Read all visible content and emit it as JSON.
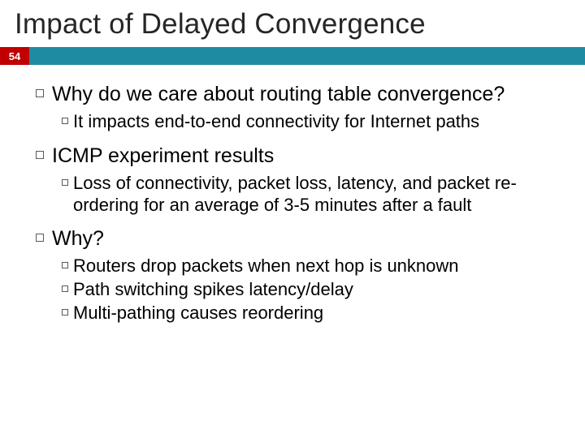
{
  "slide": {
    "title": "Impact of Delayed Convergence",
    "number": "54",
    "colors": {
      "title_text": "#262626",
      "bar_red": "#c00000",
      "bar_teal": "#1f8ba3",
      "slide_num_text": "#ffffff",
      "body_text": "#000000",
      "bullet_border": "#5a5a5a",
      "background": "#ffffff"
    },
    "typography": {
      "title_fontsize": 35,
      "lvl1_fontsize": 25,
      "lvl2_fontsize": 22,
      "font_family": "Arial"
    },
    "bullets": [
      {
        "text": "Why do we care about routing table convergence?",
        "children": [
          {
            "text": "It impacts end-to-end connectivity for Internet paths"
          }
        ]
      },
      {
        "text": "ICMP experiment results",
        "children": [
          {
            "text": "Loss of connectivity, packet loss, latency, and packet re-ordering for an average of 3-5 minutes after a fault"
          }
        ]
      },
      {
        "text": "Why?",
        "children": [
          {
            "text": "Routers drop packets when next hop is unknown"
          },
          {
            "text": "Path switching spikes latency/delay"
          },
          {
            "text": "Multi-pathing causes reordering"
          }
        ]
      }
    ]
  }
}
